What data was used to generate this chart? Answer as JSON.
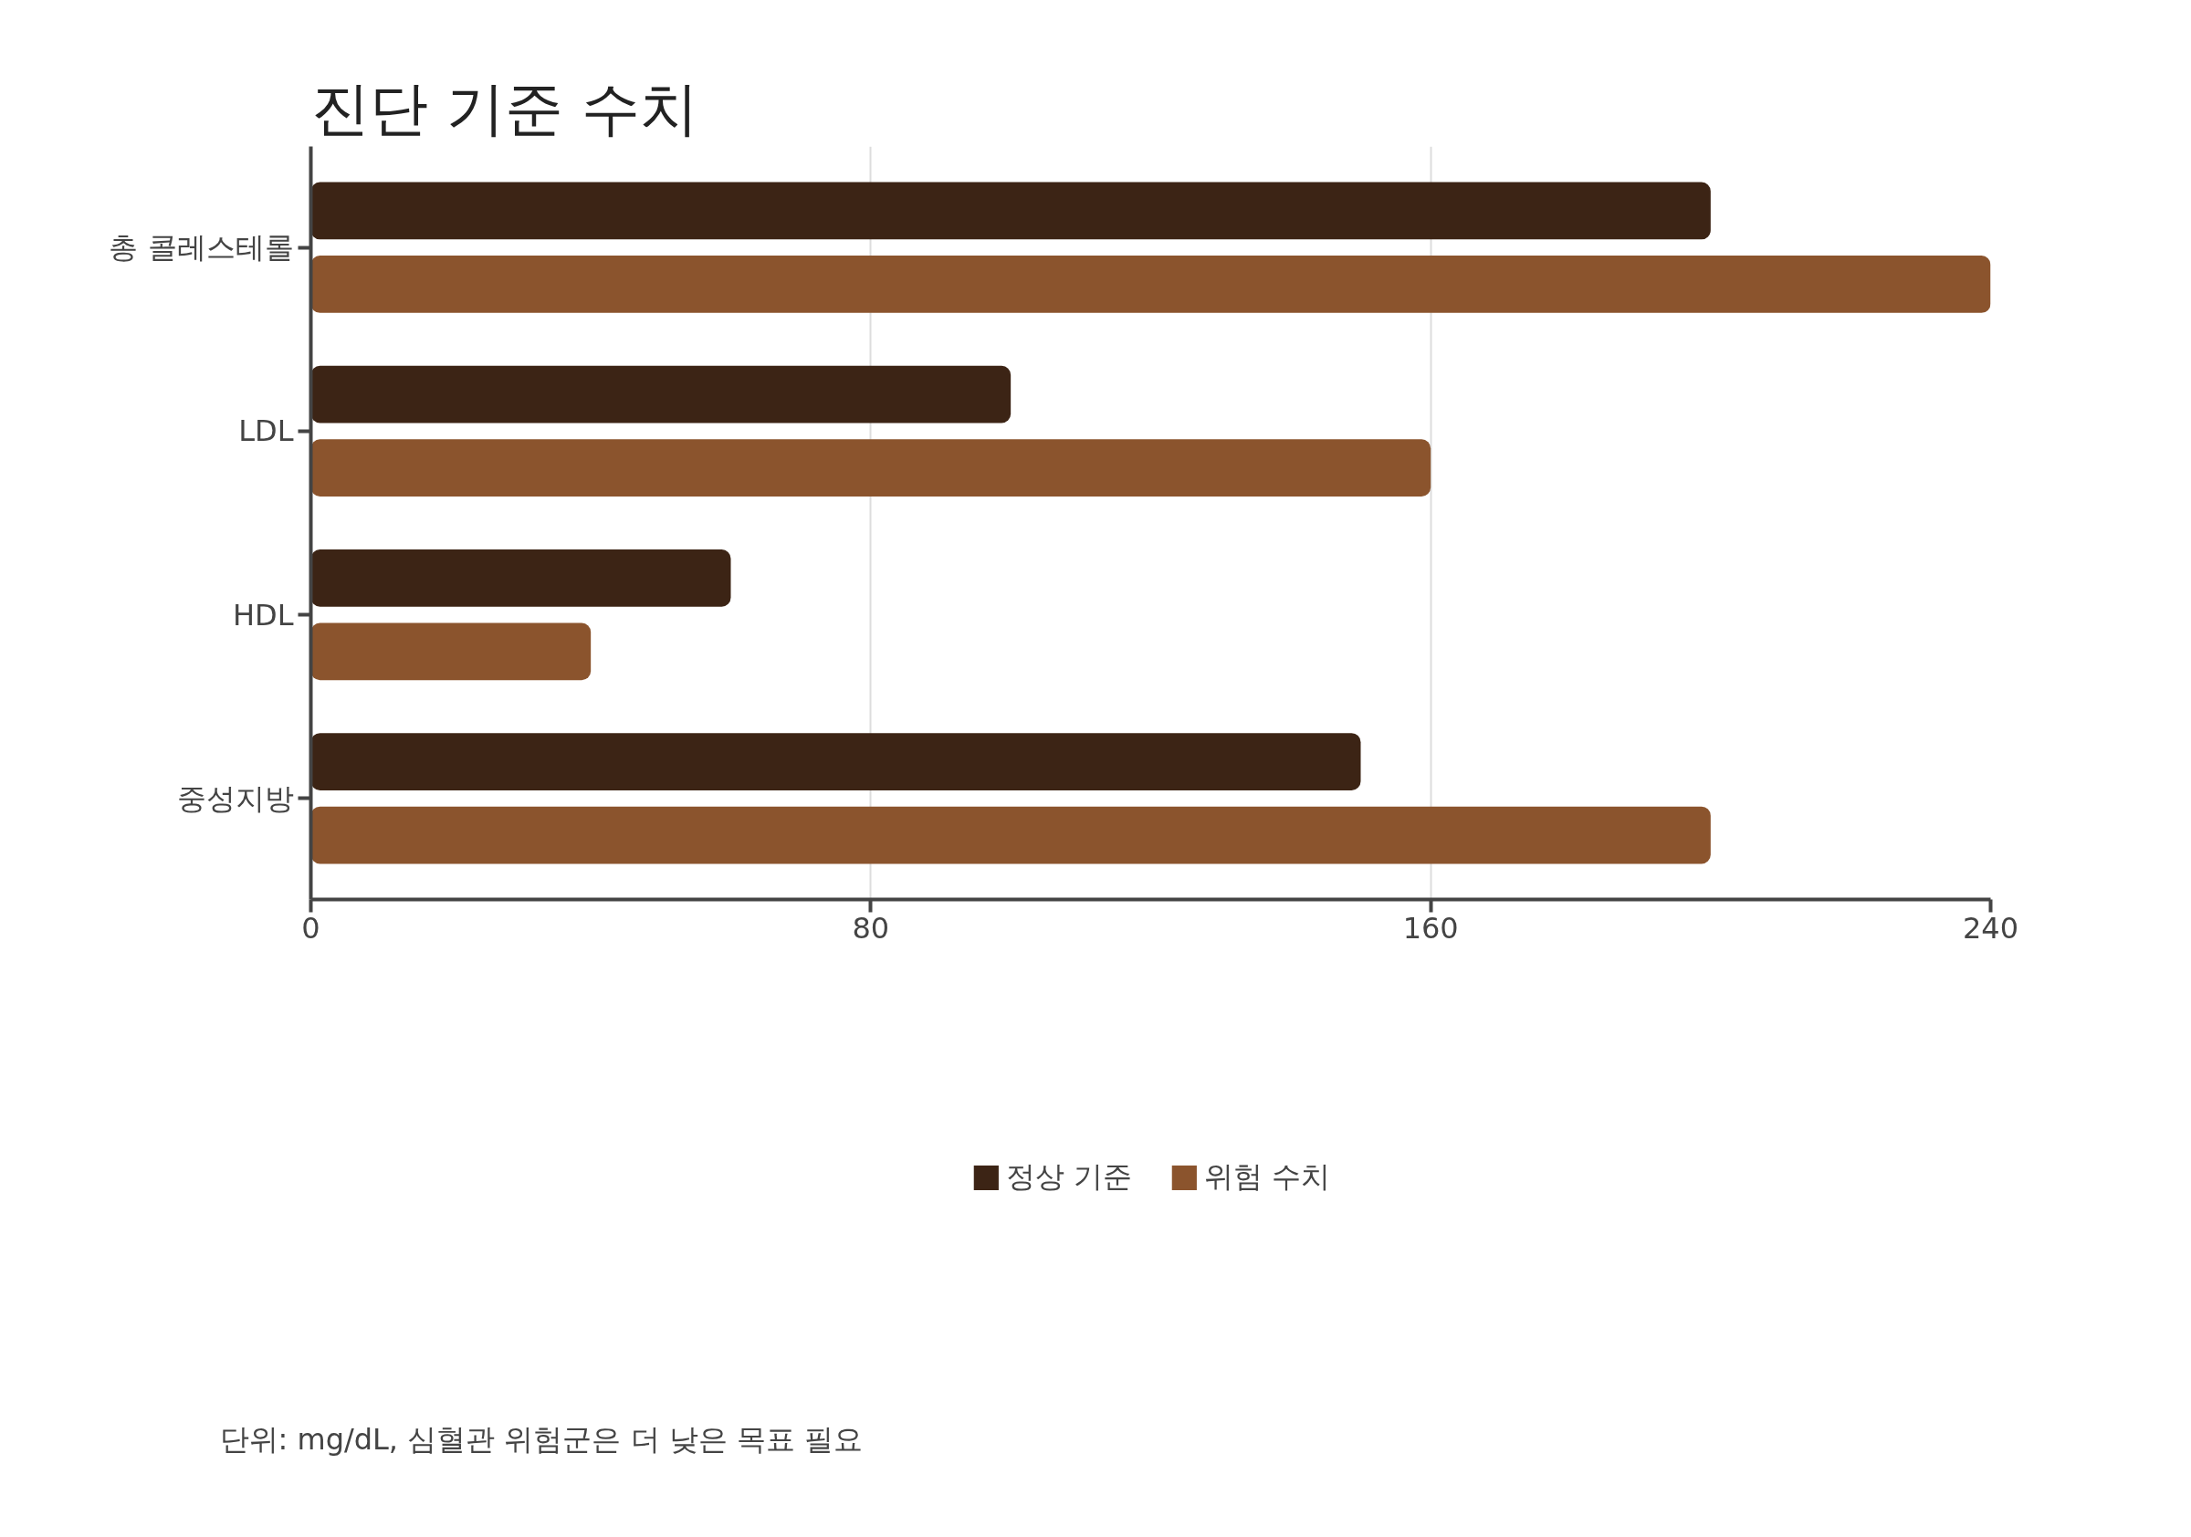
{
  "chart_data": {
    "type": "bar",
    "orientation": "horizontal",
    "title": "진단 기준 수치",
    "categories": [
      "총 콜레스테롤",
      "LDL",
      "HDL",
      "중성지방"
    ],
    "series": [
      {
        "name": "정상 기준",
        "color": "#3c2415",
        "values": [
          200,
          100,
          60,
          150
        ]
      },
      {
        "name": "위험 수치",
        "color": "#8b542d",
        "values": [
          240,
          160,
          40,
          200
        ]
      }
    ],
    "xlim": [
      0,
      240
    ],
    "xticks": [
      0,
      80,
      160,
      240
    ],
    "grid": "x",
    "legend": "bottom",
    "annotations": [
      "단위: mg/dL, 심혈관 위험군은 더 낮은 목표 필요"
    ]
  }
}
